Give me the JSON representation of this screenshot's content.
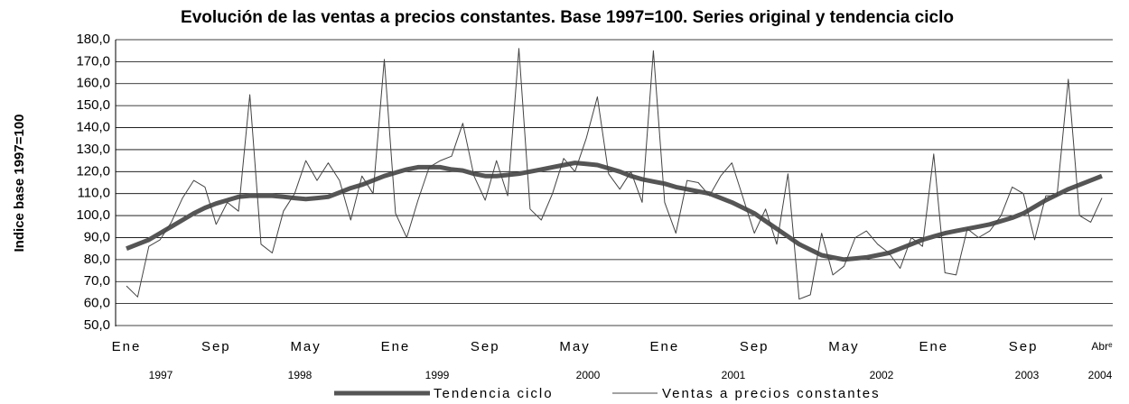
{
  "chart_data": {
    "type": "line",
    "title": "Evolución de las ventas a precios constantes. Base 1997=100. Series original y tendencia ciclo",
    "y_label": "Indice base 1997=100",
    "categories": [
      "Ene",
      null,
      null,
      null,
      null,
      null,
      null,
      null,
      "Sep",
      null,
      null,
      null,
      null,
      null,
      null,
      null,
      "May",
      null,
      null,
      null,
      null,
      null,
      null,
      null,
      "Ene",
      null,
      null,
      null,
      null,
      null,
      null,
      null,
      "Sep",
      null,
      null,
      null,
      null,
      null,
      null,
      null,
      "May",
      null,
      null,
      null,
      null,
      null,
      null,
      null,
      "Ene",
      null,
      null,
      null,
      null,
      null,
      null,
      null,
      "Sep",
      null,
      null,
      null,
      null,
      null,
      null,
      null,
      "May",
      null,
      null,
      null,
      null,
      null,
      null,
      null,
      "Ene",
      null,
      null,
      null,
      null,
      null,
      null,
      null,
      "Sep",
      null,
      null,
      null,
      null,
      null,
      null,
      "Abrᵉ"
    ],
    "years": [
      "1997",
      "1998",
      "1999",
      "2000",
      "2001",
      "2002",
      "2003",
      "2004"
    ],
    "series": [
      {
        "name": "Tendencia ciclo",
        "color": "#555555",
        "width": 5,
        "values": [
          85,
          87,
          89,
          92,
          95,
          98,
          101,
          103.5,
          105.5,
          107,
          108.5,
          109,
          109,
          109,
          108.5,
          108,
          107.5,
          108,
          108.5,
          110.5,
          112.5,
          114,
          116,
          118,
          119.5,
          121,
          122,
          122,
          122,
          121,
          120.5,
          119,
          118,
          118,
          118.5,
          119,
          120,
          121,
          122,
          123,
          124,
          123.5,
          123,
          121.5,
          120,
          118,
          116.5,
          115.5,
          114.5,
          113,
          112,
          111,
          110,
          108,
          106,
          103.5,
          101,
          97.5,
          94,
          90.5,
          87,
          84.5,
          82,
          81,
          80,
          80.5,
          81,
          82,
          83,
          85,
          87,
          89,
          90.5,
          92,
          93,
          94,
          95,
          96,
          97.5,
          99,
          101,
          104,
          107,
          109.5,
          112,
          114,
          116,
          118
        ]
      },
      {
        "name": "Ventas a precios constantes",
        "color": "#444444",
        "width": 1,
        "values": [
          68,
          63,
          86,
          89,
          97,
          108,
          116,
          113,
          96,
          106,
          102,
          155,
          87,
          83,
          102,
          110,
          125,
          116,
          124,
          116,
          98,
          118,
          110,
          171,
          101,
          90,
          107,
          122,
          125,
          127,
          142,
          118,
          107,
          125,
          109,
          176,
          103,
          98,
          110,
          126,
          120,
          135,
          154,
          119,
          112,
          120,
          106,
          175,
          106,
          92,
          116,
          115,
          109,
          118,
          124,
          108,
          92,
          103,
          87,
          119,
          62,
          64,
          92,
          73,
          77,
          90,
          93,
          87,
          83,
          76,
          90,
          86,
          128,
          74,
          73,
          94,
          90,
          93,
          100,
          113,
          110,
          89,
          109,
          109,
          162,
          100,
          97,
          108
        ]
      }
    ],
    "ylim": [
      50,
      180
    ],
    "yticks": [
      {
        "value": 50,
        "label": "50,0"
      },
      {
        "value": 60,
        "label": "60,0"
      },
      {
        "value": 70,
        "label": "70,0"
      },
      {
        "value": 80,
        "label": "80,0"
      },
      {
        "value": 90,
        "label": "90,0"
      },
      {
        "value": 100,
        "label": "100,0"
      },
      {
        "value": 110,
        "label": "110,0"
      },
      {
        "value": 120,
        "label": "120,0"
      },
      {
        "value": 130,
        "label": "130,0"
      },
      {
        "value": 140,
        "label": "140,0"
      },
      {
        "value": 150,
        "label": "150,0"
      },
      {
        "value": 160,
        "label": "160,0"
      },
      {
        "value": 170,
        "label": "170,0"
      },
      {
        "value": 180,
        "label": "180,0"
      }
    ],
    "grid": true
  }
}
